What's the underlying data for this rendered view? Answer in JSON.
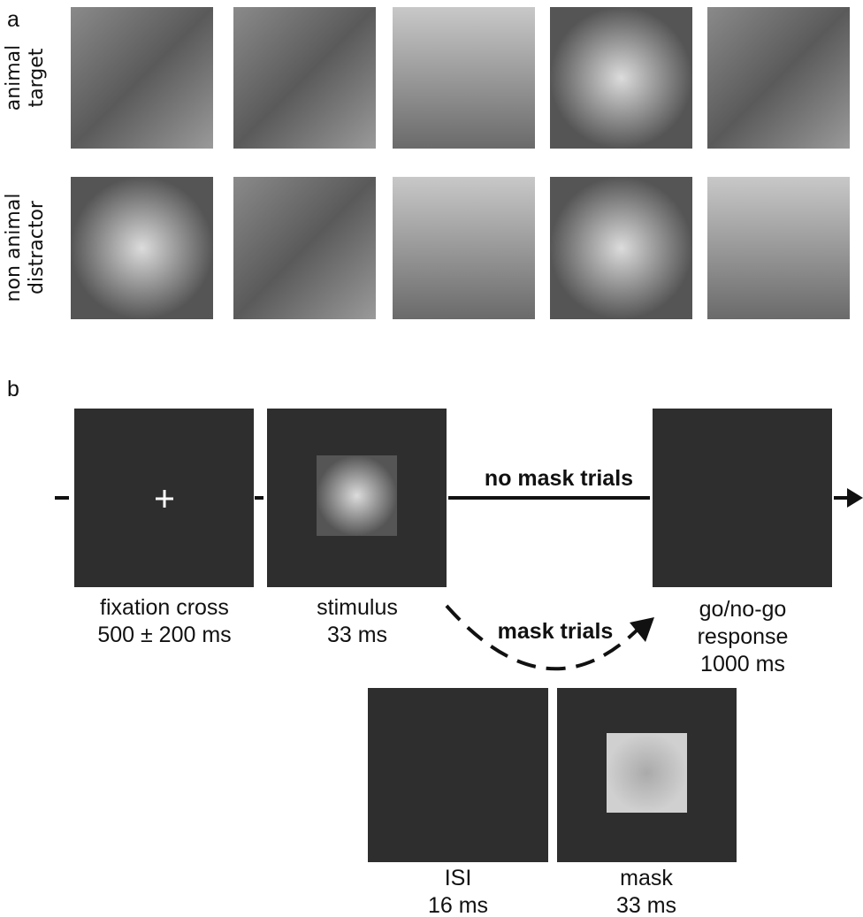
{
  "panel_a": {
    "label": "a",
    "rows": [
      {
        "label_lines": [
          "animal",
          "target"
        ]
      },
      {
        "label_lines": [
          "non animal",
          "distractor"
        ]
      }
    ]
  },
  "panel_b": {
    "label": "b",
    "screens": {
      "fixation": {
        "caption_lines": [
          "fixation cross",
          "500 ± 200 ms"
        ]
      },
      "stimulus": {
        "caption_lines": [
          "stimulus",
          "33 ms"
        ]
      },
      "response": {
        "caption_lines": [
          "go/no-go",
          "response",
          "1000 ms"
        ]
      },
      "isi": {
        "caption_lines": [
          "ISI",
          "16 ms"
        ]
      },
      "mask": {
        "caption_lines": [
          "mask",
          "33 ms"
        ]
      }
    },
    "paths": {
      "no_mask": "no mask trials",
      "mask": "mask trials"
    }
  }
}
